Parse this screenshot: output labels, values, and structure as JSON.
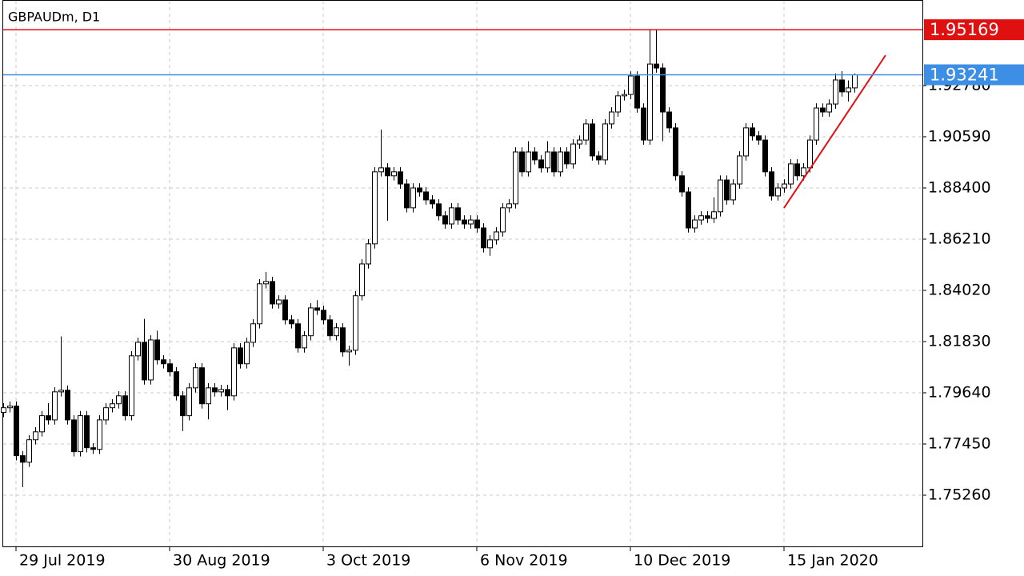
{
  "chart_data": {
    "type": "candlestick",
    "title": "GBPAUDm, D1",
    "categories": [
      null,
      null,
      "29 Jul 2019",
      null,
      null,
      null,
      null,
      null,
      null,
      null,
      null,
      null,
      null,
      null,
      null,
      null,
      null,
      null,
      null,
      null,
      null,
      null,
      null,
      null,
      null,
      null,
      "30 Aug 2019",
      null,
      null,
      null,
      null,
      null,
      null,
      null,
      null,
      null,
      null,
      null,
      null,
      null,
      null,
      null,
      null,
      null,
      null,
      null,
      null,
      null,
      null,
      null,
      "3 Oct 2019",
      null,
      null,
      null,
      null,
      null,
      null,
      null,
      null,
      null,
      null,
      null,
      null,
      null,
      null,
      null,
      null,
      null,
      null,
      null,
      null,
      null,
      null,
      null,
      "6 Nov 2019",
      null,
      null,
      null,
      null,
      null,
      null,
      null,
      null,
      null,
      null,
      null,
      null,
      null,
      null,
      null,
      null,
      null,
      null,
      null,
      null,
      null,
      null,
      null,
      "10 Dec 2019",
      null,
      null,
      null,
      null,
      null,
      null,
      null,
      null,
      null,
      null,
      null,
      null,
      null,
      null,
      null,
      null,
      null,
      null,
      null,
      null,
      null,
      null,
      null,
      "15 Jan 2020",
      null,
      null,
      null,
      null,
      null,
      null,
      null,
      null,
      null,
      null,
      null
    ],
    "open": [
      1.788,
      1.79,
      1.7907,
      1.7695,
      1.7667,
      1.7763,
      1.7797,
      1.7866,
      1.7848,
      1.7968,
      1.7975,
      1.7848,
      1.7712,
      1.7866,
      1.7729,
      1.7722,
      1.7848,
      1.79,
      1.7917,
      1.7951,
      1.7866,
      1.8122,
      1.818,
      1.8019,
      1.819,
      1.8105,
      1.8088,
      1.8054,
      1.7951,
      1.7866,
      1.7985,
      1.8071,
      1.7917,
      1.7985,
      1.7968,
      1.7978,
      1.7951,
      1.8156,
      1.8088,
      1.818,
      1.8259,
      1.843,
      1.844,
      1.8344,
      1.8361,
      1.8276,
      1.8259,
      1.8156,
      1.8208,
      1.8327,
      1.8317,
      1.8276,
      1.8208,
      1.8242,
      1.8139,
      1.8146,
      1.8379,
      1.8515,
      1.8601,
      1.8909,
      1.8926,
      1.8892,
      1.8909,
      1.8857,
      1.8755,
      1.884,
      1.8823,
      1.8789,
      1.8772,
      1.8721,
      1.8686,
      1.8755,
      1.8703,
      1.8686,
      1.8703,
      1.8669,
      1.8584,
      1.8618,
      1.8652,
      1.8755,
      1.8772,
      1.8994,
      1.8909,
      1.8994,
      1.896,
      1.8926,
      1.8994,
      1.8909,
      1.8994,
      1.8943,
      1.9028,
      1.9045,
      1.9114,
      1.8977,
      1.896,
      1.9114,
      1.9165,
      1.9234,
      1.924,
      1.9319,
      1.9182,
      1.9045,
      1.937,
      1.9353,
      1.9165,
      1.9097,
      1.8892,
      1.8823,
      1.8669,
      1.8703,
      1.8721,
      1.871,
      1.8738,
      1.8874,
      1.8789,
      1.8857,
      1.8977,
      1.9097,
      1.9063,
      1.9045,
      1.8909,
      1.8806,
      1.884,
      1.8857,
      1.8943,
      1.8892,
      1.8926,
      1.9045,
      1.9182,
      1.9165,
      1.9199,
      1.9302,
      1.9251,
      1.9268
    ],
    "high": [
      1.792,
      1.7927,
      1.7927,
      1.7715,
      1.7783,
      1.7817,
      1.7886,
      1.792,
      1.7988,
      1.8205,
      1.7995,
      1.7868,
      1.7886,
      1.7886,
      1.7749,
      1.7868,
      1.792,
      1.7937,
      1.7971,
      1.7971,
      1.8142,
      1.82,
      1.828,
      1.821,
      1.823,
      1.8125,
      1.8108,
      1.8074,
      1.7971,
      1.8005,
      1.8091,
      1.8091,
      1.8005,
      1.8005,
      1.7998,
      1.7998,
      1.8176,
      1.8176,
      1.82,
      1.8279,
      1.845,
      1.848,
      1.846,
      1.8381,
      1.8381,
      1.8296,
      1.8279,
      1.8228,
      1.8347,
      1.836,
      1.8337,
      1.8296,
      1.8262,
      1.8262,
      1.8166,
      1.8399,
      1.8535,
      1.8621,
      1.8929,
      1.909,
      1.8946,
      1.8929,
      1.8929,
      1.8877,
      1.886,
      1.886,
      1.8843,
      1.8809,
      1.8792,
      1.8741,
      1.8775,
      1.8775,
      1.8723,
      1.8723,
      1.8723,
      1.8689,
      1.8638,
      1.8672,
      1.8775,
      1.8792,
      1.9014,
      1.9014,
      1.904,
      1.9014,
      1.898,
      1.904,
      1.9014,
      1.9014,
      1.9014,
      1.9048,
      1.9065,
      1.9134,
      1.9134,
      1.8997,
      1.9134,
      1.9185,
      1.9254,
      1.926,
      1.9339,
      1.9339,
      1.9202,
      1.9517,
      1.9517,
      1.9373,
      1.9185,
      1.9117,
      1.8912,
      1.8843,
      1.8723,
      1.8741,
      1.8741,
      1.88,
      1.8894,
      1.8894,
      1.8877,
      1.8997,
      1.9117,
      1.9117,
      1.9083,
      1.9065,
      1.8929,
      1.886,
      1.8877,
      1.8963,
      1.8963,
      1.8946,
      1.9065,
      1.9202,
      1.9202,
      1.9219,
      1.933,
      1.934,
      1.93,
      1.933
    ],
    "low": [
      1.786,
      1.788,
      1.7675,
      1.756,
      1.7647,
      1.7743,
      1.7777,
      1.7828,
      1.7828,
      1.7948,
      1.7828,
      1.7692,
      1.7692,
      1.7709,
      1.7702,
      1.7702,
      1.7828,
      1.788,
      1.7897,
      1.7846,
      1.7846,
      1.8102,
      1.7999,
      1.7999,
      1.8085,
      1.8068,
      1.8034,
      1.7931,
      1.78,
      1.7846,
      1.7965,
      1.7897,
      1.785,
      1.7948,
      1.7948,
      1.789,
      1.7931,
      1.8068,
      1.8068,
      1.816,
      1.8239,
      1.841,
      1.8324,
      1.8324,
      1.8256,
      1.8239,
      1.8136,
      1.8136,
      1.8188,
      1.8297,
      1.8256,
      1.8188,
      1.8188,
      1.8119,
      1.808,
      1.8126,
      1.8359,
      1.8495,
      1.8581,
      1.8889,
      1.87,
      1.8872,
      1.8837,
      1.8735,
      1.8735,
      1.8803,
      1.8769,
      1.8752,
      1.8701,
      1.8666,
      1.8666,
      1.8683,
      1.8666,
      1.8666,
      1.8649,
      1.8564,
      1.855,
      1.8598,
      1.8632,
      1.8735,
      1.8752,
      1.8889,
      1.8889,
      1.894,
      1.8906,
      1.8906,
      1.8889,
      1.8889,
      1.8923,
      1.8923,
      1.9008,
      1.9025,
      1.8957,
      1.894,
      1.894,
      1.9094,
      1.9145,
      1.9214,
      1.922,
      1.9162,
      1.9025,
      1.9025,
      1.9333,
      1.904,
      1.9077,
      1.8872,
      1.8803,
      1.8649,
      1.8649,
      1.8683,
      1.869,
      1.869,
      1.8718,
      1.8769,
      1.8769,
      1.8837,
      1.8957,
      1.9043,
      1.9025,
      1.8889,
      1.8786,
      1.8786,
      1.882,
      1.8837,
      1.8872,
      1.8872,
      1.8906,
      1.9025,
      1.9145,
      1.9145,
      1.9179,
      1.9231,
      1.921,
      1.9248
    ],
    "close": [
      1.79,
      1.7907,
      1.7695,
      1.7667,
      1.7763,
      1.7797,
      1.7866,
      1.7848,
      1.7968,
      1.7975,
      1.7848,
      1.7712,
      1.7866,
      1.7729,
      1.7722,
      1.7848,
      1.79,
      1.7917,
      1.7951,
      1.7866,
      1.8122,
      1.818,
      1.8019,
      1.819,
      1.8105,
      1.8088,
      1.8054,
      1.7951,
      1.7866,
      1.7985,
      1.8071,
      1.7917,
      1.7985,
      1.7968,
      1.7978,
      1.7951,
      1.8156,
      1.8088,
      1.818,
      1.8259,
      1.843,
      1.844,
      1.8344,
      1.8361,
      1.8276,
      1.8259,
      1.8156,
      1.8208,
      1.8327,
      1.8317,
      1.8276,
      1.8208,
      1.8242,
      1.8139,
      1.8146,
      1.8379,
      1.8515,
      1.8601,
      1.8909,
      1.8926,
      1.8892,
      1.8909,
      1.8857,
      1.8755,
      1.884,
      1.8823,
      1.8789,
      1.8772,
      1.8721,
      1.8686,
      1.8755,
      1.8703,
      1.8686,
      1.8703,
      1.8669,
      1.8584,
      1.8618,
      1.8652,
      1.8755,
      1.8772,
      1.8994,
      1.8909,
      1.8994,
      1.896,
      1.8926,
      1.8994,
      1.8909,
      1.8994,
      1.8943,
      1.9028,
      1.9045,
      1.9114,
      1.8977,
      1.896,
      1.9114,
      1.9165,
      1.9234,
      1.924,
      1.9319,
      1.9182,
      1.9045,
      1.937,
      1.9353,
      1.9165,
      1.9097,
      1.8892,
      1.8823,
      1.8669,
      1.8703,
      1.8721,
      1.871,
      1.8738,
      1.8874,
      1.8789,
      1.8857,
      1.8977,
      1.9097,
      1.9063,
      1.9045,
      1.8909,
      1.8806,
      1.884,
      1.8857,
      1.8943,
      1.8892,
      1.8926,
      1.9045,
      1.9182,
      1.9165,
      1.9199,
      1.9302,
      1.9251,
      1.9268,
      1.9324
    ],
    "up_color": "#ffffff",
    "down_color": "#000000",
    "ylim": [
      1.7307,
      1.9644
    ],
    "yticks": [
      {
        "value": 1.7526,
        "label": "1.75260"
      },
      {
        "value": 1.7745,
        "label": "1.77450"
      },
      {
        "value": 1.7964,
        "label": "1.79640"
      },
      {
        "value": 1.8183,
        "label": "1.81830"
      },
      {
        "value": 1.8402,
        "label": "1.84020"
      },
      {
        "value": 1.8621,
        "label": "1.86210"
      },
      {
        "value": 1.884,
        "label": "1.88400"
      },
      {
        "value": 1.9059,
        "label": "1.90590"
      },
      {
        "value": 1.9278,
        "label": "1.92780"
      }
    ],
    "grid": true,
    "hlines": [
      {
        "value": 1.95169,
        "color": "#e01010"
      },
      {
        "value": 1.93241,
        "color": "#3d8fe6"
      }
    ]
  }
}
